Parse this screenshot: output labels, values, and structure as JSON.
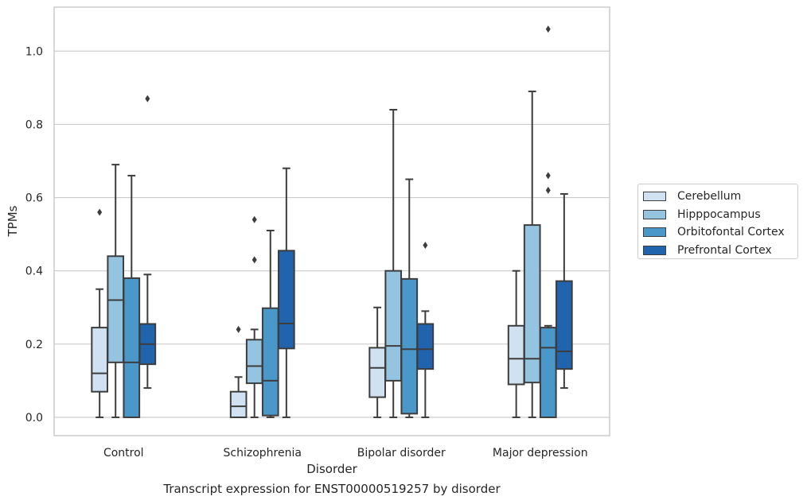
{
  "chart_data": {
    "type": "box",
    "xlabel": "Disorder",
    "ylabel": "TPMs",
    "ylim": [
      -0.05,
      1.12
    ],
    "yticks": [
      0.0,
      0.2,
      0.4,
      0.6,
      0.8,
      1.0
    ],
    "ytick_labels": [
      "0.0",
      "0.2",
      "0.4",
      "0.6",
      "0.8",
      "1.0"
    ],
    "grid": "horizontal",
    "legend_position": "right",
    "categories": [
      "Control",
      "Schizophrenia",
      "Bipolar disorder",
      "Major depression"
    ],
    "series": [
      {
        "name": "Cerebellum",
        "color": "#d0e1f2",
        "boxes": [
          {
            "whislo": 0.0,
            "q1": 0.07,
            "med": 0.12,
            "q3": 0.245,
            "whishi": 0.35,
            "fliers": [
              0.56
            ]
          },
          {
            "whislo": 0.0,
            "q1": 0.0,
            "med": 0.03,
            "q3": 0.07,
            "whishi": 0.11,
            "fliers": [
              0.24
            ]
          },
          {
            "whislo": 0.0,
            "q1": 0.055,
            "med": 0.135,
            "q3": 0.19,
            "whishi": 0.3,
            "fliers": []
          },
          {
            "whislo": 0.0,
            "q1": 0.09,
            "med": 0.16,
            "q3": 0.25,
            "whishi": 0.4,
            "fliers": []
          }
        ]
      },
      {
        "name": "Hipppocampus",
        "color": "#94c4df",
        "boxes": [
          {
            "whislo": 0.0,
            "q1": 0.15,
            "med": 0.32,
            "q3": 0.44,
            "whishi": 0.69,
            "fliers": []
          },
          {
            "whislo": 0.0,
            "q1": 0.093,
            "med": 0.14,
            "q3": 0.212,
            "whishi": 0.24,
            "fliers": [
              0.43,
              0.54
            ]
          },
          {
            "whislo": 0.0,
            "q1": 0.1,
            "med": 0.195,
            "q3": 0.4,
            "whishi": 0.84,
            "fliers": []
          },
          {
            "whislo": 0.0,
            "q1": 0.095,
            "med": 0.16,
            "q3": 0.525,
            "whishi": 0.89,
            "fliers": []
          }
        ]
      },
      {
        "name": "Orbitofontal Cortex",
        "color": "#4a98c9",
        "boxes": [
          {
            "whislo": 0.0,
            "q1": 0.0,
            "med": 0.15,
            "q3": 0.38,
            "whishi": 0.66,
            "fliers": []
          },
          {
            "whislo": 0.0,
            "q1": 0.005,
            "med": 0.1,
            "q3": 0.298,
            "whishi": 0.51,
            "fliers": []
          },
          {
            "whislo": 0.0,
            "q1": 0.01,
            "med": 0.186,
            "q3": 0.378,
            "whishi": 0.65,
            "fliers": []
          },
          {
            "whislo": 0.0,
            "q1": 0.0,
            "med": 0.19,
            "q3": 0.245,
            "whishi": 0.25,
            "fliers": [
              0.62,
              0.66,
              1.06
            ]
          }
        ]
      },
      {
        "name": "Prefrontal Cortex",
        "color": "#2064ae",
        "boxes": [
          {
            "whislo": 0.08,
            "q1": 0.145,
            "med": 0.2,
            "q3": 0.255,
            "whishi": 0.39,
            "fliers": [
              0.87
            ]
          },
          {
            "whislo": 0.0,
            "q1": 0.188,
            "med": 0.256,
            "q3": 0.455,
            "whishi": 0.68,
            "fliers": []
          },
          {
            "whislo": 0.0,
            "q1": 0.132,
            "med": 0.186,
            "q3": 0.255,
            "whishi": 0.29,
            "fliers": [
              0.47
            ]
          },
          {
            "whislo": 0.08,
            "q1": 0.132,
            "med": 0.18,
            "q3": 0.372,
            "whishi": 0.61,
            "fliers": []
          }
        ]
      }
    ]
  },
  "caption": "Transcript expression for ENST00000519257 by disorder"
}
